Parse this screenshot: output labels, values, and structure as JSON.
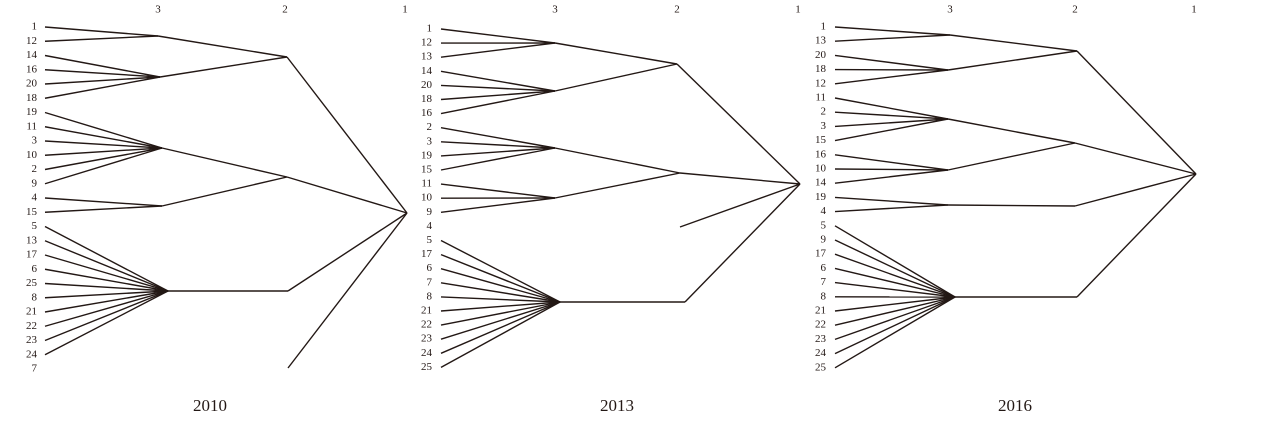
{
  "panels": [
    {
      "caption": "2010",
      "levels": [
        "3",
        "2",
        "1"
      ],
      "leaves": [
        "1",
        "12",
        "14",
        "16",
        "20",
        "18",
        "19",
        "11",
        "3",
        "10",
        "2",
        "9",
        "4",
        "15",
        "5",
        "13",
        "17",
        "6",
        "25",
        "8",
        "21",
        "22",
        "23",
        "24",
        "7"
      ]
    },
    {
      "caption": "2013",
      "levels": [
        "3",
        "2",
        "1"
      ],
      "leaves": [
        "1",
        "12",
        "13",
        "14",
        "20",
        "18",
        "16",
        "2",
        "3",
        "19",
        "15",
        "11",
        "10",
        "9",
        "4",
        "5",
        "17",
        "6",
        "7",
        "8",
        "21",
        "22",
        "23",
        "24",
        "25"
      ]
    },
    {
      "caption": "2016",
      "levels": [
        "3",
        "2",
        "1"
      ],
      "leaves": [
        "1",
        "13",
        "20",
        "18",
        "12",
        "11",
        "2",
        "3",
        "15",
        "16",
        "10",
        "14",
        "19",
        "4",
        "5",
        "9",
        "17",
        "6",
        "7",
        "8",
        "21",
        "22",
        "23",
        "24",
        "25"
      ]
    }
  ]
}
